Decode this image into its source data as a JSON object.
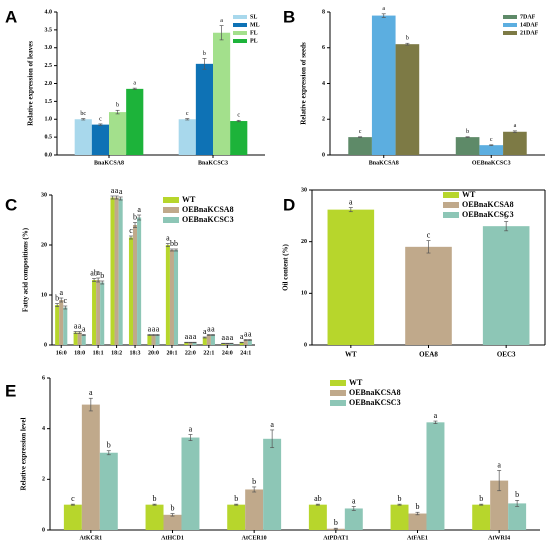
{
  "chart_data": [
    {
      "type": "bar",
      "panel": "A",
      "ylabel": "Relative expression of leaves",
      "categories": [
        "BnaKCSA8",
        "BnaKCSC3"
      ],
      "series": [
        {
          "name": "SL",
          "color": "#a8d8ec",
          "values": [
            1.0,
            1.0
          ],
          "errors": [
            0.02,
            0.02
          ],
          "letters": [
            "bc",
            "c"
          ]
        },
        {
          "name": "ML",
          "color": "#0e72b5",
          "values": [
            0.85,
            2.55
          ],
          "errors": [
            0.02,
            0.15
          ],
          "letters": [
            "c",
            "b"
          ]
        },
        {
          "name": "FL",
          "color": "#a3e08c",
          "values": [
            1.2,
            3.42
          ],
          "errors": [
            0.05,
            0.2
          ],
          "letters": [
            "b",
            "a"
          ]
        },
        {
          "name": "PL",
          "color": "#1db33a",
          "values": [
            1.85,
            0.95
          ],
          "errors": [
            0.02,
            0.02
          ],
          "letters": [
            "a",
            "c"
          ]
        }
      ],
      "ylim": [
        0,
        4
      ],
      "yticks": [
        {
          "value": 0,
          "label": "0.0"
        },
        0.5,
        {
          "value": 1,
          "label": "1.0"
        },
        1.5,
        {
          "value": 2,
          "label": "2.0"
        },
        2.5,
        {
          "value": 3,
          "label": "3.0"
        },
        3.5,
        {
          "value": 4,
          "label": "4.0"
        }
      ],
      "legend": "upper right"
    },
    {
      "type": "bar",
      "panel": "B",
      "ylabel": "Relative expression of seeds",
      "categories": [
        "BnaKCSA8",
        "OEBnaKCSC3"
      ],
      "series": [
        {
          "name": "7DAF",
          "color": "#5e8a68",
          "values": [
            1.0,
            1.0
          ],
          "errors": [
            0.02,
            0.02
          ],
          "letters": [
            "c",
            "b"
          ]
        },
        {
          "name": "14DAF",
          "color": "#5caee0",
          "values": [
            7.8,
            0.55
          ],
          "errors": [
            0.1,
            0.02
          ],
          "letters": [
            "a",
            "c"
          ]
        },
        {
          "name": "21DAF",
          "color": "#7d7a45",
          "values": [
            6.2,
            1.3
          ],
          "errors": [
            0.05,
            0.05
          ],
          "letters": [
            "b",
            "a"
          ]
        }
      ],
      "ylim": [
        0,
        8
      ],
      "yticks": [
        0,
        2,
        4,
        6,
        8
      ],
      "legend": "upper right"
    },
    {
      "type": "bar",
      "panel": "C",
      "ylabel": "Fatty acid compositions (%)",
      "categories": [
        "16:0",
        "18:0",
        "18:1",
        "18:2",
        "18:3",
        "20:0",
        "20:1",
        "22:0",
        "22:1",
        "24:0",
        "24:1"
      ],
      "series": [
        {
          "name": "WT",
          "color": "#b7d62c",
          "values": [
            8,
            2.5,
            13,
            29.5,
            21.5,
            2,
            20,
            0.5,
            1.5,
            0.3,
            0.5
          ],
          "errors": [
            0.3,
            0.2,
            0.3,
            0.3,
            0.3,
            0.1,
            0.3,
            0.05,
            0.1,
            0.05,
            0.05
          ],
          "letters": [
            "b",
            "a",
            "ab",
            "a",
            "c",
            "a",
            "a",
            "a",
            "a",
            "a",
            "a"
          ]
        },
        {
          "name": "OEBnaKCSA8",
          "color": "#c0a98b",
          "values": [
            9,
            2.5,
            13,
            29.5,
            24,
            2,
            19,
            0.5,
            2,
            0.3,
            1
          ],
          "errors": [
            0.4,
            0.2,
            0.4,
            0.3,
            0.5,
            0.1,
            0.2,
            0.05,
            0.1,
            0.05,
            0.1
          ],
          "letters": [
            "a",
            "a",
            "a",
            "a",
            "b",
            "a",
            "b",
            "a",
            "a",
            "a",
            "a"
          ]
        },
        {
          "name": "OEBnaKCSC3",
          "color": "#8dc6b6",
          "values": [
            7.5,
            2,
            12.5,
            29.3,
            25.5,
            2,
            19,
            0.5,
            2,
            0.3,
            1
          ],
          "errors": [
            0.3,
            0.1,
            0.3,
            0.3,
            0.5,
            0.1,
            0.2,
            0.05,
            0.1,
            0.05,
            0.1
          ],
          "letters": [
            "c",
            "a",
            "b",
            "a",
            "a",
            "a",
            "b",
            "a",
            "a",
            "a",
            "a"
          ]
        }
      ],
      "ylim": [
        0,
        30
      ],
      "yticks": [
        0,
        10,
        20,
        30
      ],
      "legend": "upper right"
    },
    {
      "type": "colorbar",
      "panel": "D",
      "ylabel": "Oil content (%)",
      "categories": [
        "WT",
        "OEA8",
        "OEC3"
      ],
      "values": [
        26.2,
        19,
        23
      ],
      "errors": [
        0.4,
        1.2,
        0.9
      ],
      "letters": [
        "a",
        "c",
        "b"
      ],
      "colors": [
        "#b7d62c",
        "#c0a98b",
        "#8dc6b6"
      ],
      "legend_labels": [
        "WT",
        "OEBnaKCSA8",
        "OEBnaKCSC3"
      ],
      "ylim": [
        0,
        30
      ],
      "yticks": [
        0,
        10,
        20,
        30
      ],
      "legend": "upper right"
    },
    {
      "type": "bar",
      "panel": "E",
      "ylabel": "Relative expression level",
      "categories": [
        "AtKCR1",
        "AtHCD1",
        "AtCER10",
        "AtPDAT1",
        "AtFAE1",
        "AtWRI4"
      ],
      "series": [
        {
          "name": "WT",
          "color": "#b7d62c",
          "values": [
            1,
            1,
            1,
            1,
            1,
            1
          ],
          "errors": [
            0.02,
            0.02,
            0.02,
            0.02,
            0.02,
            0.02
          ],
          "letters": [
            "c",
            "b",
            "b",
            "ab",
            "b",
            "b"
          ]
        },
        {
          "name": "OEBnaKCSA8",
          "color": "#c0a98b",
          "values": [
            4.95,
            0.6,
            1.6,
            0.05,
            0.65,
            1.95
          ],
          "errors": [
            0.25,
            0.05,
            0.1,
            0.02,
            0.05,
            0.4
          ],
          "letters": [
            "a",
            "b",
            "b",
            "b",
            "b",
            "a"
          ]
        },
        {
          "name": "OEBnaKCSC3",
          "color": "#8dc6b6",
          "values": [
            3.05,
            3.65,
            3.6,
            0.85,
            4.25,
            1.05
          ],
          "errors": [
            0.08,
            0.12,
            0.35,
            0.08,
            0.05,
            0.12
          ],
          "letters": [
            "b",
            "a",
            "a",
            "a",
            "a",
            "b"
          ]
        }
      ],
      "ylim": [
        0,
        6
      ],
      "yticks": [
        0,
        2,
        4,
        6
      ],
      "legend": "upper right"
    }
  ]
}
